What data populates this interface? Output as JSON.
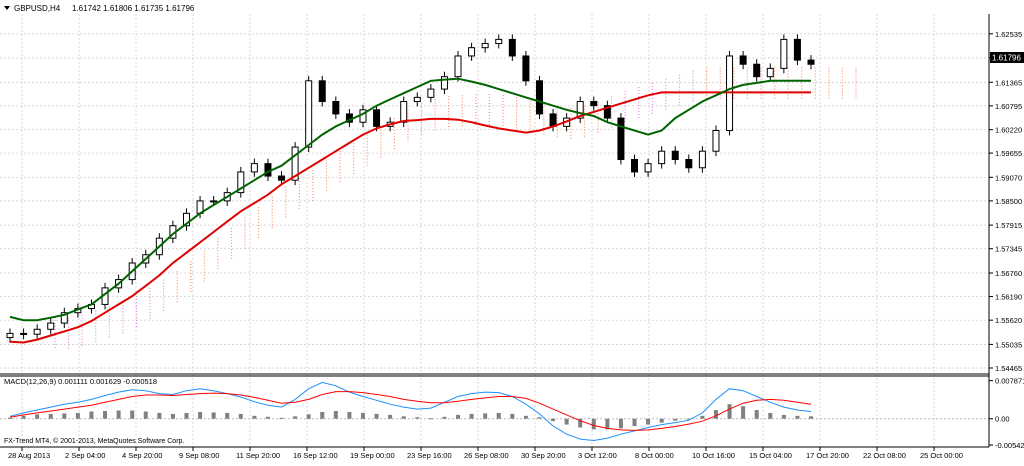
{
  "header": {
    "symbol_label": "GBPUSD,H4",
    "quote": "1.61742 1.61806 1.61735 1.61796",
    "current_price": "1.61796"
  },
  "indicator": {
    "label": "MACD(12,26,9) 0.001111 0.001629 -0.000518",
    "copyright": "FX-Trend MT4, © 2001-2013, MetaQuotes Software Corp."
  },
  "colors": {
    "candle": "#000000",
    "ma_fast": "#006400",
    "ma_slow": "#e00000",
    "cloud_bear": "#ff8c69",
    "cloud_bull": "#dd88dd",
    "macd_hist": "#808080",
    "macd_line": "#1e90ff",
    "signal_line": "#ff0000",
    "grid": "#c8c8c8",
    "arrow_up": "#00cc00",
    "arrow_down": "#ff0000"
  },
  "chart_data": {
    "type": "candlestick",
    "price_axis": {
      "min": 1.54465,
      "max": 1.6282,
      "ticks": [
        "1.62535",
        "1.61950",
        "1.61365",
        "1.60795",
        "1.60220",
        "1.59655",
        "1.59070",
        "1.58500",
        "1.57915",
        "1.57345",
        "1.56760",
        "1.56190",
        "1.55620",
        "1.55035",
        "1.54465"
      ]
    },
    "macd_axis": {
      "min": -0.00542,
      "max": 0.008,
      "ticks": [
        "0.007871",
        "0.00",
        "-0.005424"
      ]
    },
    "time_labels": [
      "28 Aug 2013",
      "2 Sep 04:00",
      "4 Sep 20:00",
      "9 Sep 08:00",
      "11 Sep 20:00",
      "16 Sep 12:00",
      "19 Sep 00:00",
      "23 Sep 16:00",
      "26 Sep 08:00",
      "30 Sep 20:00",
      "3 Oct 12:00",
      "8 Oct 00:00",
      "10 Oct 16:00",
      "15 Oct 04:00",
      "17 Oct 20:00",
      "22 Oct 08:00",
      "25 Oct 00:00"
    ],
    "series": [
      {
        "name": "close",
        "values": [
          1.553,
          1.5528,
          1.554,
          1.5555,
          1.558,
          1.559,
          1.56,
          1.564,
          1.566,
          1.57,
          1.572,
          1.576,
          1.579,
          1.582,
          1.585,
          1.585,
          1.587,
          1.592,
          1.594,
          1.591,
          1.59,
          1.598,
          1.614,
          1.609,
          1.606,
          1.604,
          1.607,
          1.603,
          1.604,
          1.609,
          1.61,
          1.612,
          1.615,
          1.62,
          1.622,
          1.623,
          1.624,
          1.62,
          1.614,
          1.606,
          1.603,
          1.605,
          1.609,
          1.608,
          1.605,
          1.595,
          1.592,
          1.594,
          1.597,
          1.595,
          1.593,
          1.597,
          1.602,
          1.62,
          1.618,
          1.615,
          1.617,
          1.624,
          1.619,
          1.618
        ]
      },
      {
        "name": "ma_fast",
        "values": [
          1.557,
          1.5562,
          1.5562,
          1.5568,
          1.5575,
          1.5588,
          1.56,
          1.5625,
          1.565,
          1.568,
          1.571,
          1.574,
          1.577,
          1.5795,
          1.582,
          1.584,
          1.586,
          1.588,
          1.59,
          1.592,
          1.5935,
          1.596,
          1.5985,
          1.601,
          1.603,
          1.6045,
          1.606,
          1.608,
          1.6095,
          1.611,
          1.6125,
          1.614,
          1.6143,
          1.6145,
          1.6138,
          1.613,
          1.612,
          1.611,
          1.61,
          1.609,
          1.608,
          1.607,
          1.6062,
          1.6055,
          1.604,
          1.603,
          1.602,
          1.601,
          1.602,
          1.605,
          1.607,
          1.609,
          1.6105,
          1.612,
          1.613,
          1.6135,
          1.614,
          1.614,
          1.614,
          1.614
        ]
      },
      {
        "name": "ma_slow",
        "values": [
          1.551,
          1.5508,
          1.5515,
          1.5525,
          1.5535,
          1.5545,
          1.556,
          1.558,
          1.56,
          1.562,
          1.5645,
          1.567,
          1.57,
          1.5725,
          1.575,
          1.5775,
          1.58,
          1.5825,
          1.5845,
          1.5865,
          1.589,
          1.591,
          1.593,
          1.595,
          1.597,
          1.599,
          1.601,
          1.6025,
          1.6035,
          1.6043,
          1.6045,
          1.6048,
          1.6048,
          1.6046,
          1.604,
          1.6032,
          1.6025,
          1.602,
          1.6015,
          1.602,
          1.603,
          1.6042,
          1.6055,
          1.6065,
          1.6075,
          1.6085,
          1.6095,
          1.6105,
          1.6112,
          1.6112,
          1.6112,
          1.6112,
          1.6112,
          1.6112,
          1.6112,
          1.6112,
          1.6112,
          1.6112,
          1.6112,
          1.6112
        ]
      }
    ],
    "macd": {
      "hist": [
        0.0002,
        0.0006,
        0.0009,
        0.001,
        0.0011,
        0.0012,
        0.0015,
        0.0016,
        0.0017,
        0.0017,
        0.0015,
        0.0012,
        0.001,
        0.0012,
        0.0014,
        0.0013,
        0.0012,
        0.001,
        0.0006,
        0.0004,
        0.0002,
        0.0005,
        0.0009,
        0.0014,
        0.0016,
        0.0014,
        0.0012,
        0.001,
        0.0008,
        0.0005,
        0.0003,
        0.0001,
        0.0004,
        0.0008,
        0.001,
        0.0011,
        0.0012,
        0.001,
        0.0006,
        0.0003,
        -0.0005,
        -0.0012,
        -0.0018,
        -0.0022,
        -0.0022,
        -0.002,
        -0.0015,
        -0.0012,
        -0.0008,
        -0.0004,
        -0.0001,
        0.0006,
        0.0018,
        0.003,
        0.0026,
        0.0018,
        0.0012,
        0.0008,
        0.0006,
        0.0005
      ],
      "macd_line": [
        0.0005,
        0.0012,
        0.0018,
        0.0024,
        0.003,
        0.0034,
        0.004,
        0.0048,
        0.0055,
        0.006,
        0.0058,
        0.0052,
        0.005,
        0.0058,
        0.0062,
        0.0058,
        0.0052,
        0.0045,
        0.0035,
        0.0028,
        0.0024,
        0.004,
        0.0062,
        0.0075,
        0.0068,
        0.0055,
        0.0046,
        0.0038,
        0.003,
        0.0024,
        0.002,
        0.0022,
        0.0034,
        0.0046,
        0.0052,
        0.0055,
        0.0054,
        0.0046,
        0.003,
        0.001,
        -0.0015,
        -0.0032,
        -0.0042,
        -0.0045,
        -0.004,
        -0.0032,
        -0.0025,
        -0.0018,
        -0.0012,
        -0.0008,
        -0.0003,
        0.0012,
        0.004,
        0.0062,
        0.0058,
        0.0046,
        0.0034,
        0.0024,
        0.0018,
        0.0015
      ],
      "signal_line": [
        0.0003,
        0.0008,
        0.0012,
        0.0016,
        0.002,
        0.0024,
        0.0028,
        0.0034,
        0.004,
        0.0046,
        0.0049,
        0.0049,
        0.0048,
        0.005,
        0.0052,
        0.0053,
        0.0052,
        0.0049,
        0.0044,
        0.0038,
        0.0032,
        0.0034,
        0.004,
        0.005,
        0.0056,
        0.0056,
        0.0054,
        0.005,
        0.0046,
        0.004,
        0.0036,
        0.0033,
        0.0033,
        0.0036,
        0.004,
        0.0043,
        0.0046,
        0.0046,
        0.0042,
        0.0032,
        0.002,
        0.0008,
        -0.0004,
        -0.0014,
        -0.002,
        -0.0023,
        -0.0024,
        -0.0023,
        -0.002,
        -0.0016,
        -0.0011,
        -0.0005,
        0.0006,
        0.002,
        0.0032,
        0.0038,
        0.004,
        0.0038,
        0.0034,
        0.003
      ]
    }
  }
}
